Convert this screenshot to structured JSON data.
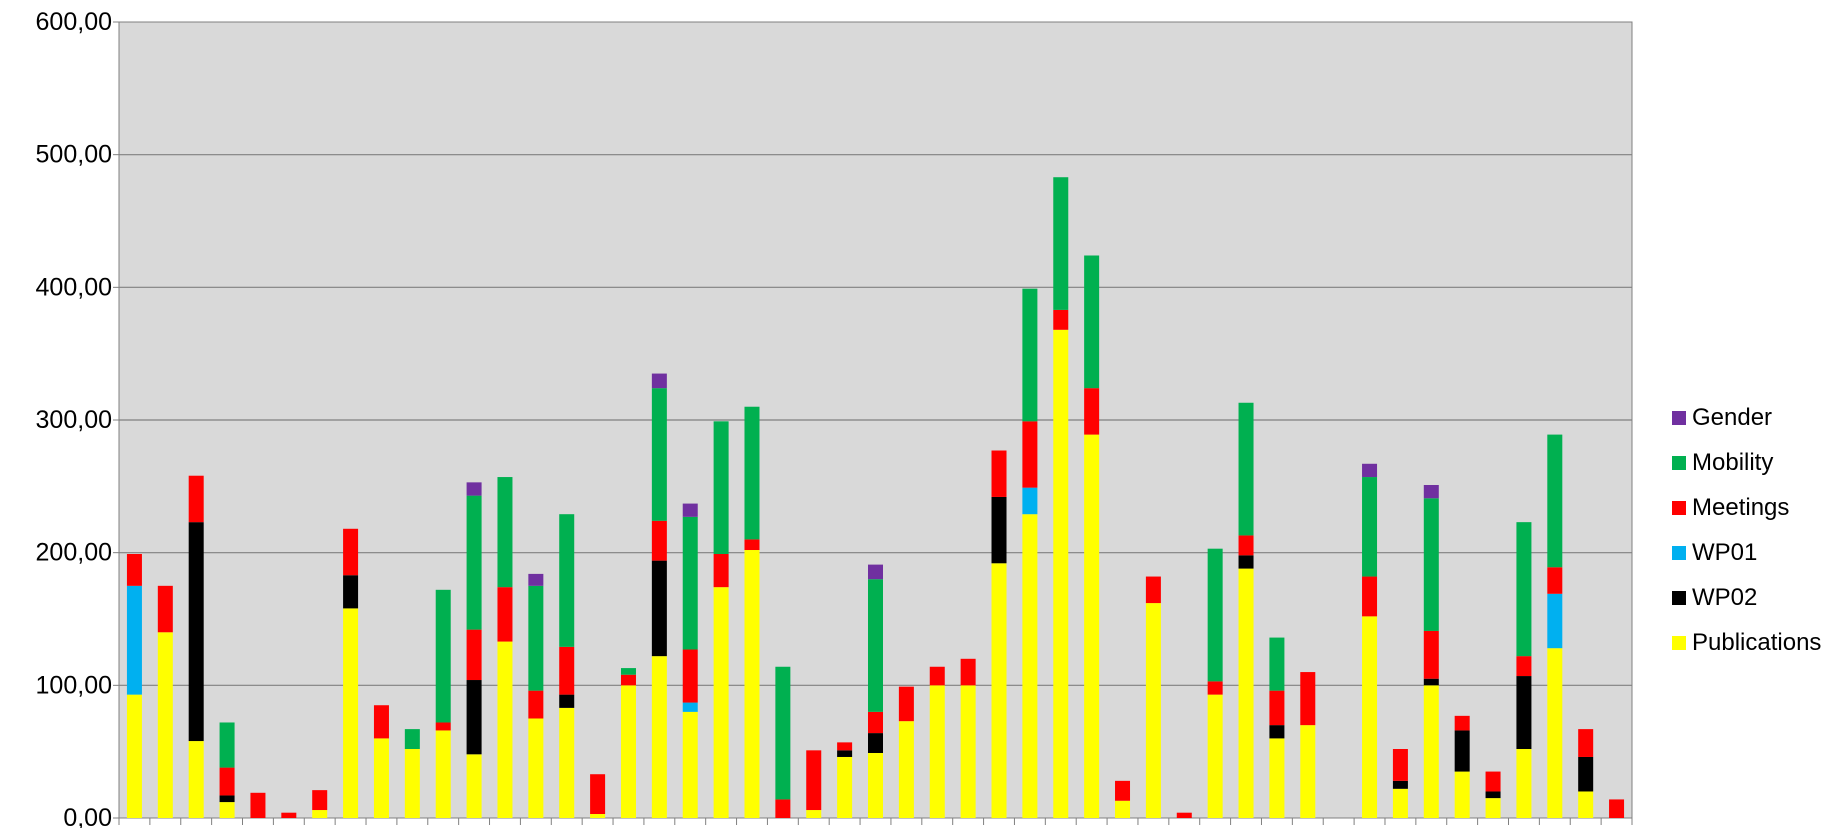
{
  "chart_data": {
    "type": "bar",
    "stacked": true,
    "title": "",
    "xlabel": "",
    "ylabel": "",
    "ylim": [
      0,
      600
    ],
    "yticks": [
      "0,00",
      "100,00",
      "200,00",
      "300,00",
      "400,00",
      "500,00",
      "600,00"
    ],
    "grid": true,
    "legend_position": "right",
    "plot_background": "#d9d9d9",
    "series_stack_order": [
      "Publications",
      "WP02",
      "WP01",
      "Meetings",
      "Mobility",
      "Gender"
    ],
    "series": [
      {
        "name": "Publications",
        "color": "#ffff00",
        "values": [
          93,
          140,
          58,
          12,
          0,
          0,
          6,
          158,
          60,
          52,
          66,
          48,
          133,
          75,
          83,
          3,
          100,
          122,
          80,
          174,
          202,
          0,
          6,
          46,
          49,
          73,
          100,
          100,
          192,
          229,
          368,
          289,
          13,
          162,
          0,
          93,
          188,
          60,
          70,
          0,
          152,
          22,
          100,
          35,
          15,
          52,
          128,
          20,
          0
        ]
      },
      {
        "name": "WP02",
        "color": "#000000",
        "values": [
          0,
          0,
          165,
          5,
          0,
          0,
          0,
          25,
          0,
          0,
          0,
          56,
          0,
          0,
          10,
          0,
          0,
          72,
          0,
          0,
          0,
          0,
          0,
          5,
          15,
          0,
          0,
          0,
          50,
          0,
          0,
          0,
          0,
          0,
          0,
          0,
          10,
          10,
          0,
          0,
          0,
          6,
          5,
          31,
          5,
          55,
          0,
          26,
          0
        ]
      },
      {
        "name": "WP01",
        "color": "#00b0f0",
        "values": [
          82,
          0,
          0,
          0,
          0,
          0,
          0,
          0,
          0,
          0,
          0,
          0,
          0,
          0,
          0,
          0,
          0,
          0,
          7,
          0,
          0,
          0,
          0,
          0,
          0,
          0,
          0,
          0,
          0,
          20,
          0,
          0,
          0,
          0,
          0,
          0,
          0,
          0,
          0,
          0,
          0,
          0,
          0,
          0,
          0,
          0,
          41,
          0,
          0
        ]
      },
      {
        "name": "Meetings",
        "color": "#ff0000",
        "values": [
          24,
          35,
          35,
          21,
          19,
          4,
          15,
          35,
          25,
          0,
          6,
          38,
          41,
          21,
          36,
          30,
          8,
          30,
          40,
          25,
          8,
          14,
          45,
          6,
          16,
          26,
          14,
          20,
          35,
          50,
          15,
          35,
          15,
          20,
          4,
          10,
          15,
          26,
          40,
          0,
          30,
          24,
          36,
          11,
          15,
          15,
          20,
          21,
          14
        ]
      },
      {
        "name": "Mobility",
        "color": "#00b050",
        "values": [
          0,
          0,
          0,
          34,
          0,
          0,
          0,
          0,
          0,
          15,
          100,
          101,
          83,
          79,
          100,
          0,
          5,
          100,
          100,
          100,
          100,
          100,
          0,
          0,
          100,
          0,
          0,
          0,
          0,
          100,
          100,
          100,
          0,
          0,
          0,
          100,
          100,
          40,
          0,
          0,
          75,
          0,
          100,
          0,
          0,
          101,
          100,
          0,
          0
        ]
      },
      {
        "name": "Gender",
        "color": "#7030a0",
        "values": [
          0,
          0,
          0,
          0,
          0,
          0,
          0,
          0,
          0,
          0,
          0,
          10,
          0,
          9,
          0,
          0,
          0,
          11,
          10,
          0,
          0,
          0,
          0,
          0,
          11,
          0,
          0,
          0,
          0,
          0,
          0,
          0,
          0,
          0,
          0,
          0,
          0,
          0,
          0,
          0,
          10,
          0,
          10,
          0,
          0,
          0,
          0,
          0,
          0
        ]
      }
    ]
  },
  "legend_items": [
    {
      "label": "Gender",
      "color": "#7030a0"
    },
    {
      "label": "Mobility",
      "color": "#00b050"
    },
    {
      "label": "Meetings",
      "color": "#ff0000"
    },
    {
      "label": "WP01",
      "color": "#00b0f0"
    },
    {
      "label": "WP02",
      "color": "#000000"
    },
    {
      "label": "Publications",
      "color": "#ffff00"
    }
  ]
}
